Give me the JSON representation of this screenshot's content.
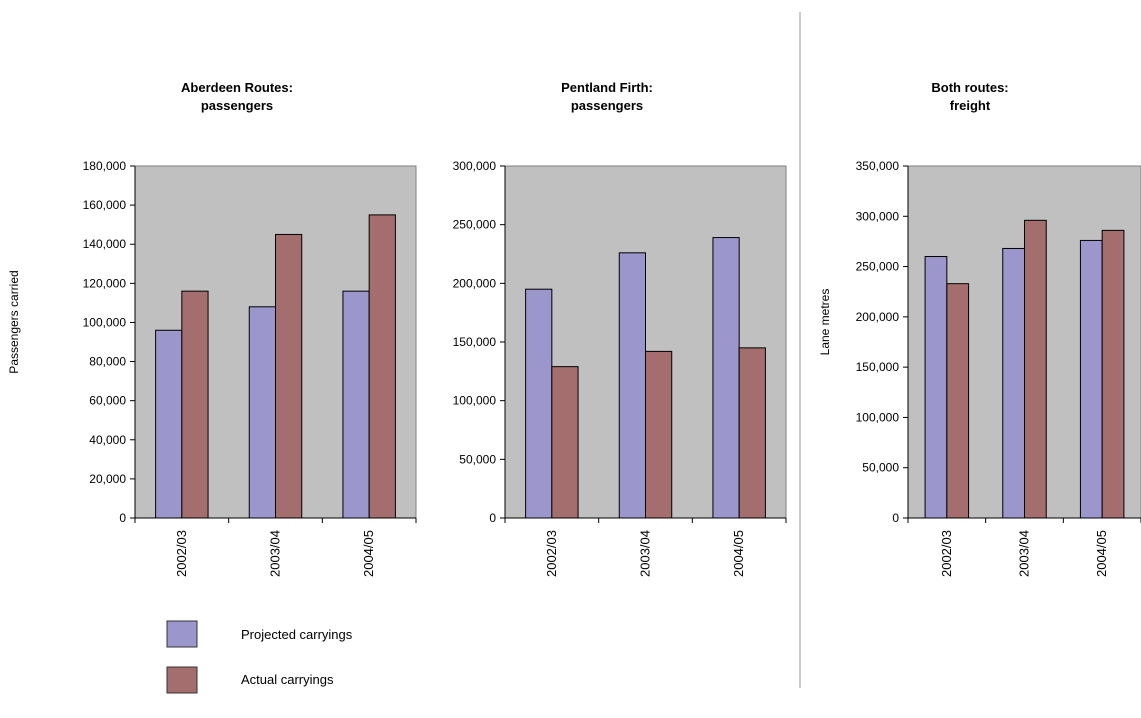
{
  "colors": {
    "projected": "#9b97cc",
    "actual": "#a56e6e",
    "plot_bg": "#c0c0c0",
    "divider": "#9a9a9a"
  },
  "legend": [
    {
      "label": "Projected carryings",
      "color_key": "projected"
    },
    {
      "label": "Actual carryings",
      "color_key": "actual"
    }
  ],
  "chart_data": [
    {
      "type": "bar",
      "title_lines": [
        "Aberdeen Routes:",
        "passengers"
      ],
      "ylabel": "Passengers carried",
      "categories": [
        "2002/03",
        "2003/04",
        "2004/05"
      ],
      "ylim": [
        0,
        180000
      ],
      "yticks": [
        0,
        20000,
        40000,
        60000,
        80000,
        100000,
        120000,
        140000,
        160000,
        180000
      ],
      "ytick_labels": [
        "0",
        "20,000",
        "40,000",
        "60,000",
        "80,000",
        "100,000",
        "120,000",
        "140,000",
        "160,000",
        "180,000"
      ],
      "series": [
        {
          "name": "Projected carryings",
          "values": [
            96000,
            108000,
            116000
          ]
        },
        {
          "name": "Actual carryings",
          "values": [
            116000,
            145000,
            155000
          ]
        }
      ]
    },
    {
      "type": "bar",
      "title_lines": [
        "Pentland Firth:",
        "passengers"
      ],
      "ylabel": "",
      "categories": [
        "2002/03",
        "2003/04",
        "2004/05"
      ],
      "ylim": [
        0,
        300000
      ],
      "yticks": [
        0,
        50000,
        100000,
        150000,
        200000,
        250000,
        300000
      ],
      "ytick_labels": [
        "0",
        "50,000",
        "100,000",
        "150,000",
        "200,000",
        "250,000",
        "300,000"
      ],
      "series": [
        {
          "name": "Projected carryings",
          "values": [
            195000,
            226000,
            239000
          ]
        },
        {
          "name": "Actual carryings",
          "values": [
            129000,
            142000,
            145000
          ]
        }
      ]
    },
    {
      "type": "bar",
      "title_lines": [
        "Both routes:",
        "freight"
      ],
      "ylabel": "Lane metres",
      "categories": [
        "2002/03",
        "2003/04",
        "2004/05"
      ],
      "ylim": [
        0,
        350000
      ],
      "yticks": [
        0,
        50000,
        100000,
        150000,
        200000,
        250000,
        300000,
        350000
      ],
      "ytick_labels": [
        "0",
        "50,000",
        "100,000",
        "150,000",
        "200,000",
        "250,000",
        "300,000",
        "350,000"
      ],
      "series": [
        {
          "name": "Projected carryings",
          "values": [
            260000,
            268000,
            276000
          ]
        },
        {
          "name": "Actual carryings",
          "values": [
            233000,
            296000,
            286000
          ]
        }
      ]
    }
  ]
}
